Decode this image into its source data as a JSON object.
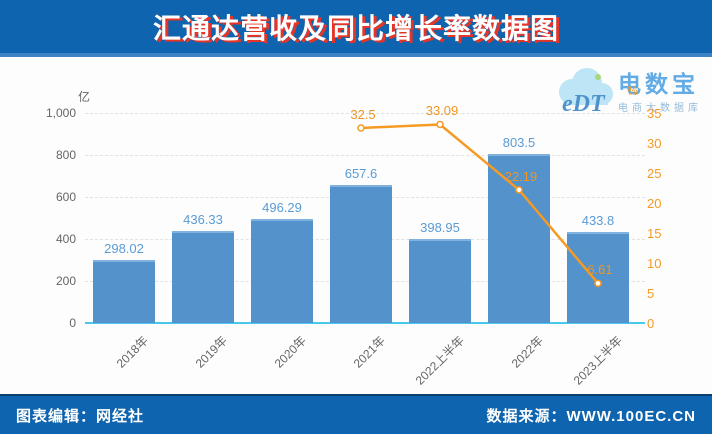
{
  "header": {
    "title": "汇通达营收及同比增长率数据图"
  },
  "footer": {
    "editor": "图表编辑：网经社",
    "source": "数据来源：WWW.100EC.CN"
  },
  "watermark": {
    "logo_text": "eDT",
    "brand": "电数宝",
    "tagline": "电商大数据库"
  },
  "colors": {
    "header_bg": "#0e64ae",
    "title_shadow_red": "#e53528",
    "bar_fill": "#5492cc",
    "bar_label": "#5b9bd5",
    "line_orange": "#f59a23",
    "axis_gray": "#666666",
    "baseline_cyan": "#49c7ef"
  },
  "chart_data": {
    "type": "bar",
    "title": "汇通达营收及同比增长率数据图",
    "categories": [
      "2018年",
      "2019年",
      "2020年",
      "2021年",
      "2022上半年",
      "2022年",
      "2023上半年"
    ],
    "series": [
      {
        "name": "revenue_bar",
        "type": "bar",
        "axis": "left",
        "values": [
          298.02,
          436.33,
          496.29,
          657.6,
          398.95,
          803.5,
          433.8
        ]
      },
      {
        "name": "yoy_growth_line",
        "type": "line",
        "axis": "right",
        "values": [
          null,
          null,
          null,
          32.5,
          33.09,
          22.19,
          6.61
        ]
      }
    ],
    "left_axis": {
      "unit": "亿",
      "ticks": [
        "1,000",
        "800",
        "600",
        "400",
        "200",
        "0"
      ],
      "range": [
        0,
        1000
      ]
    },
    "right_axis": {
      "unit": "%",
      "ticks": [
        "35",
        "30",
        "25",
        "20",
        "15",
        "10",
        "5",
        "0"
      ],
      "range": [
        0,
        35
      ]
    },
    "grid": "dashed horizontal",
    "legend": "none"
  }
}
